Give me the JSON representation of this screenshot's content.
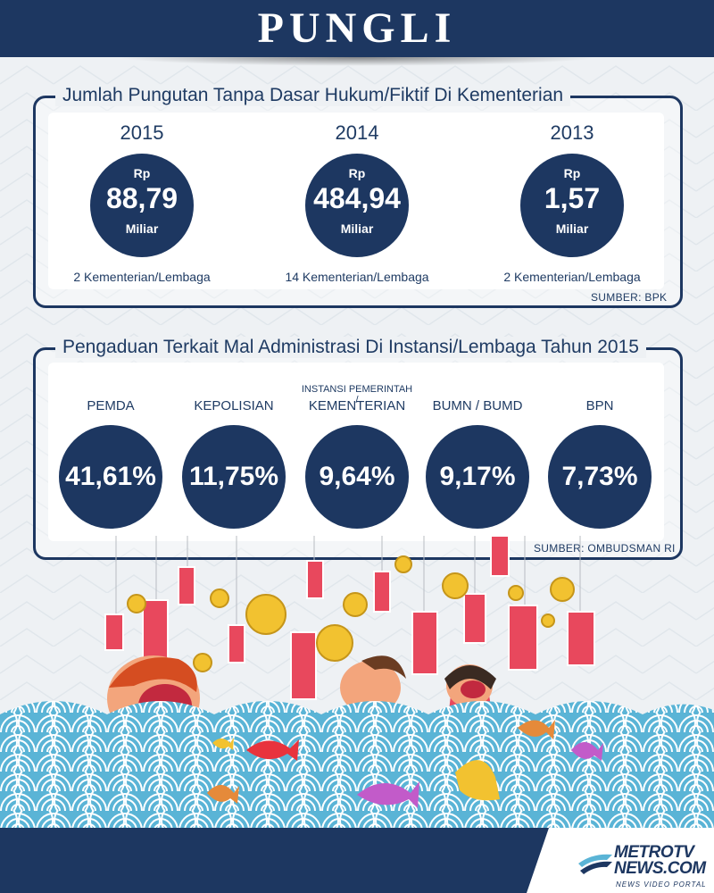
{
  "header": {
    "title": "PUNGLI"
  },
  "section1": {
    "title": "Jumlah Pungutan Tanpa Dasar Hukum/Fiktif Di Kementerian",
    "source": "SUMBER: BPK",
    "items": [
      {
        "year": "2015",
        "currency": "Rp",
        "value": "88,79",
        "unit": "Miliar",
        "count": "2 Kementerian/Lembaga"
      },
      {
        "year": "2014",
        "currency": "Rp",
        "value": "484,94",
        "unit": "Miliar",
        "count": "14 Kementerian/Lembaga"
      },
      {
        "year": "2013",
        "currency": "Rp",
        "value": "1,57",
        "unit": "Miliar",
        "count": "2 Kementerian/Lembaga"
      }
    ]
  },
  "section2": {
    "title": "Pengaduan Terkait Mal Administrasi Di Instansi/Lembaga Tahun 2015",
    "source": "SUMBER: OMBUDSMAN RI",
    "items": [
      {
        "pre": "",
        "label": "PEMDA",
        "value": "41,61%"
      },
      {
        "pre": "",
        "label": "KEPOLISIAN",
        "value": "11,75%"
      },
      {
        "pre": "INSTANSI PEMERINTAH /",
        "label": "KEMENTERIAN",
        "value": "9,64%"
      },
      {
        "pre": "",
        "label": "BUMN / BUMD",
        "value": "9,17%"
      },
      {
        "pre": "",
        "label": "BPN",
        "value": "7,73%"
      }
    ]
  },
  "footer": {
    "logo_line1": "METROTV",
    "logo_line2": "NEWS.COM",
    "tagline": "NEWS VIDEO PORTAL"
  },
  "colors": {
    "navy": "#1d3761",
    "wave": "#5ab4d6",
    "wave_light": "#ffffff",
    "money_red": "#e0455a",
    "coin": "#f2c230"
  }
}
